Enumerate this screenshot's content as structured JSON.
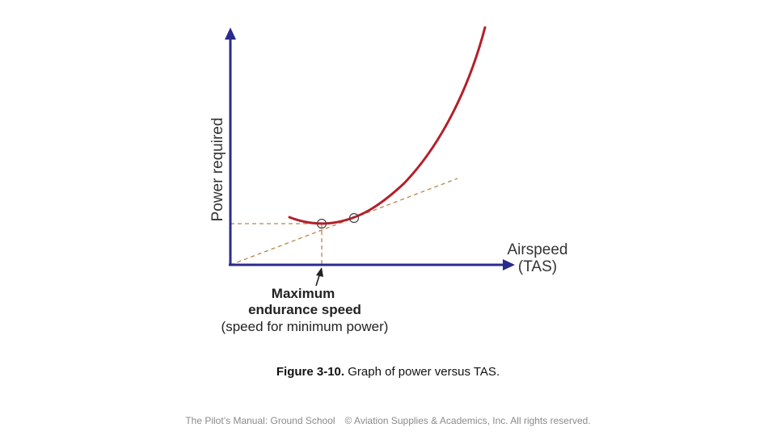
{
  "diagram": {
    "y_axis_label": "Power required",
    "x_axis_label_line1": "Airspeed",
    "x_axis_label_line2": "(TAS)",
    "annotation_line1": "Maximum",
    "annotation_line2": "endurance speed",
    "annotation_line3": "(speed for minimum power)",
    "colors": {
      "axis": "#2b2b8c",
      "curve": "#b3202a",
      "guide": "#b8864a",
      "marker": "#444444",
      "text": "#222222"
    }
  },
  "caption": {
    "figure_label": "Figure 3-10.",
    "figure_text": "Graph of power versus TAS."
  },
  "footer": {
    "left": "The Pilot’s Manual: Ground School",
    "right": "© Aviation Supplies & Academics, Inc. All rights reserved."
  }
}
